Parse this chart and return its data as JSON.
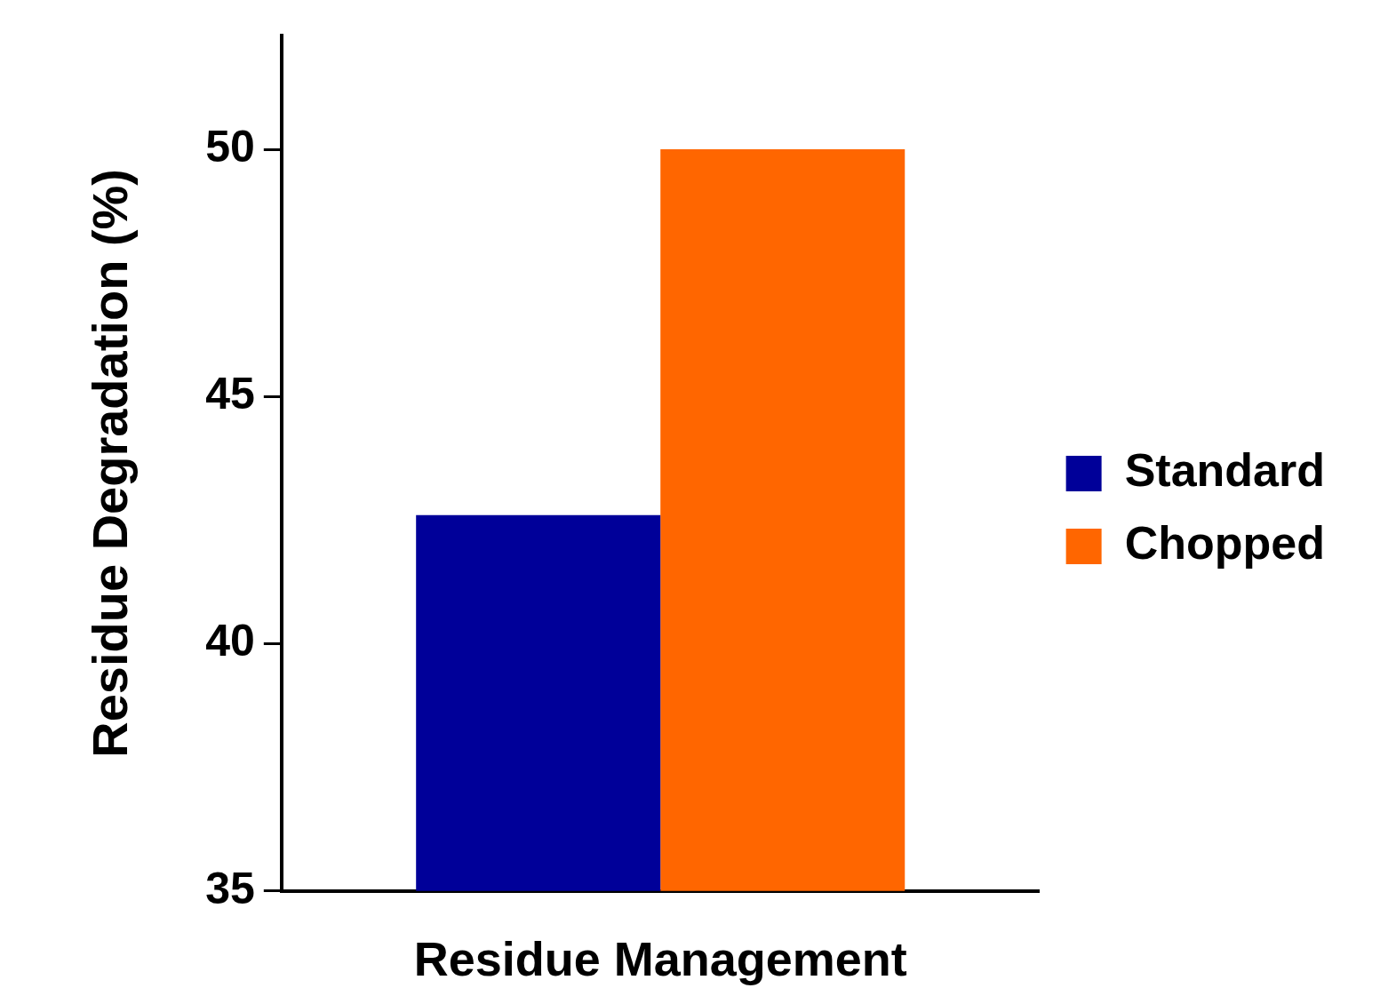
{
  "chart_data": {
    "type": "bar",
    "xlabel": "Residue Management",
    "ylabel": "Residue Degradation (%)",
    "categories": [
      null
    ],
    "series": [
      {
        "name": "Standard",
        "color": "#000099",
        "values": [
          42.6
        ]
      },
      {
        "name": "Chopped",
        "color": "#ff6600",
        "values": [
          50.0
        ]
      }
    ],
    "ylim": [
      35,
      52.3
    ],
    "yticks": [
      35,
      40,
      45,
      50
    ],
    "legend": "right"
  }
}
